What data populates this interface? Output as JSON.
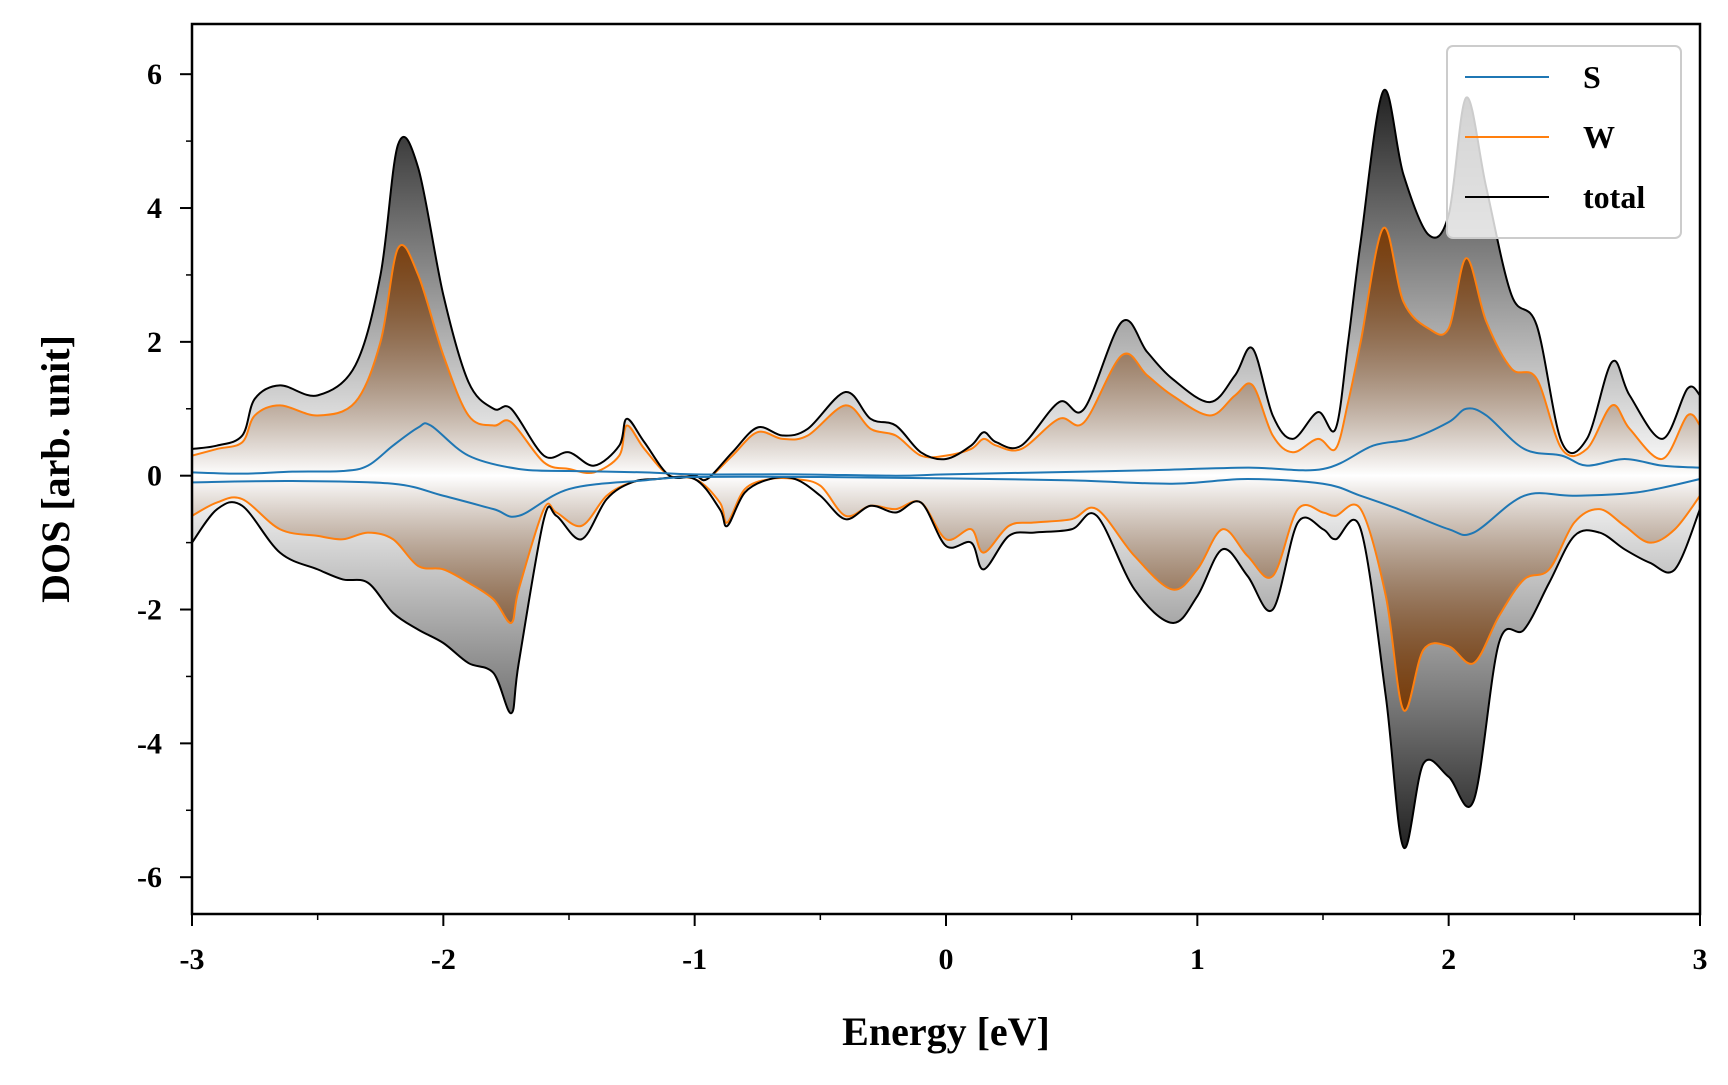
{
  "chart_data": {
    "type": "area",
    "xlabel": "Energy [eV]",
    "ylabel": "DOS [arb. unit]",
    "xlim": [
      -3,
      3
    ],
    "ylim": [
      -6.55,
      6.75
    ],
    "x_ticks": [
      -3,
      -2,
      -1,
      0,
      1,
      2,
      3
    ],
    "x_tick_labels": [
      "-3",
      "-2",
      "-1",
      "0",
      "1",
      "2",
      "3"
    ],
    "y_ticks": [
      6,
      4,
      2,
      0,
      -2,
      -4,
      -6
    ],
    "y_tick_labels": [
      "6",
      "4",
      "2",
      "0",
      "-2",
      "-4",
      "-6"
    ],
    "grid": false,
    "legend_position": "top-right",
    "fill_style": "vertical gradient, opaque at peaks fading to white at zero",
    "series": [
      {
        "name": "S",
        "color": "#1f77b4",
        "fill": false,
        "spin_up": {
          "x": [
            -3.0,
            -2.8,
            -2.6,
            -2.4,
            -2.3,
            -2.2,
            -2.1,
            -2.05,
            -1.9,
            -1.7,
            -1.5,
            -1.2,
            -1.0,
            -0.6,
            -0.2,
            0.0,
            0.4,
            0.8,
            1.2,
            1.5,
            1.7,
            1.85,
            2.0,
            2.07,
            2.15,
            2.3,
            2.45,
            2.55,
            2.7,
            2.85,
            3.0
          ],
          "y": [
            0.05,
            0.03,
            0.06,
            0.07,
            0.15,
            0.45,
            0.72,
            0.75,
            0.3,
            0.1,
            0.07,
            0.05,
            0.02,
            0.02,
            0.0,
            0.02,
            0.05,
            0.08,
            0.12,
            0.1,
            0.45,
            0.55,
            0.8,
            1.0,
            0.9,
            0.4,
            0.3,
            0.15,
            0.25,
            0.15,
            0.12
          ]
        },
        "spin_down": {
          "x": [
            -3.0,
            -2.6,
            -2.2,
            -2.0,
            -1.8,
            -1.7,
            -1.5,
            -1.2,
            -1.0,
            -0.5,
            0.0,
            0.5,
            0.9,
            1.2,
            1.5,
            1.65,
            1.8,
            2.0,
            2.1,
            2.3,
            2.5,
            2.75,
            3.0
          ],
          "y": [
            -0.1,
            -0.08,
            -0.12,
            -0.3,
            -0.5,
            -0.6,
            -0.2,
            -0.07,
            -0.02,
            -0.02,
            -0.04,
            -0.07,
            -0.12,
            -0.05,
            -0.12,
            -0.3,
            -0.5,
            -0.8,
            -0.85,
            -0.3,
            -0.3,
            -0.25,
            -0.05
          ]
        }
      },
      {
        "name": "W",
        "color": "#ff7f0e",
        "fill": true,
        "fill_color": "#7a3d0a",
        "spin_up": {
          "x": [
            -3.0,
            -2.9,
            -2.8,
            -2.75,
            -2.65,
            -2.5,
            -2.35,
            -2.25,
            -2.18,
            -2.1,
            -2.0,
            -1.9,
            -1.8,
            -1.73,
            -1.6,
            -1.5,
            -1.4,
            -1.3,
            -1.27,
            -1.2,
            -1.1,
            -1.0,
            -0.95,
            -0.85,
            -0.75,
            -0.65,
            -0.55,
            -0.4,
            -0.3,
            -0.2,
            -0.1,
            0.0,
            0.1,
            0.15,
            0.2,
            0.3,
            0.45,
            0.55,
            0.7,
            0.8,
            0.9,
            1.05,
            1.15,
            1.22,
            1.3,
            1.38,
            1.48,
            1.55,
            1.6,
            1.65,
            1.74,
            1.82,
            1.92,
            2.0,
            2.07,
            2.15,
            2.25,
            2.35,
            2.45,
            2.55,
            2.65,
            2.72,
            2.85,
            2.95,
            3.0
          ],
          "y": [
            0.3,
            0.4,
            0.5,
            0.9,
            1.05,
            0.9,
            1.1,
            2.0,
            3.4,
            3.0,
            1.8,
            0.9,
            0.75,
            0.8,
            0.2,
            0.1,
            0.05,
            0.3,
            0.75,
            0.4,
            0.0,
            0.0,
            -0.05,
            0.3,
            0.65,
            0.55,
            0.6,
            1.05,
            0.7,
            0.6,
            0.3,
            0.3,
            0.4,
            0.55,
            0.45,
            0.4,
            0.85,
            0.8,
            1.8,
            1.5,
            1.2,
            0.9,
            1.2,
            1.35,
            0.6,
            0.35,
            0.55,
            0.4,
            1.1,
            2.0,
            3.7,
            2.6,
            2.2,
            2.2,
            3.25,
            2.3,
            1.6,
            1.45,
            0.4,
            0.4,
            1.05,
            0.7,
            0.25,
            0.9,
            0.75
          ]
        },
        "spin_down": {
          "x": [
            -3.0,
            -2.9,
            -2.8,
            -2.65,
            -2.5,
            -2.4,
            -2.3,
            -2.2,
            -2.1,
            -2.0,
            -1.9,
            -1.8,
            -1.73,
            -1.7,
            -1.6,
            -1.55,
            -1.45,
            -1.35,
            -1.25,
            -1.15,
            -1.0,
            -0.9,
            -0.87,
            -0.8,
            -0.7,
            -0.6,
            -0.5,
            -0.4,
            -0.3,
            -0.2,
            -0.1,
            0.0,
            0.1,
            0.15,
            0.25,
            0.35,
            0.5,
            0.6,
            0.75,
            0.9,
            1.0,
            1.1,
            1.2,
            1.3,
            1.4,
            1.5,
            1.55,
            1.65,
            1.75,
            1.82,
            1.9,
            2.0,
            2.1,
            2.2,
            2.3,
            2.4,
            2.5,
            2.6,
            2.7,
            2.8,
            2.9,
            3.0
          ],
          "y": [
            -0.6,
            -0.4,
            -0.35,
            -0.8,
            -0.9,
            -0.95,
            -0.85,
            -0.95,
            -1.35,
            -1.4,
            -1.6,
            -1.85,
            -2.2,
            -1.7,
            -0.5,
            -0.55,
            -0.75,
            -0.3,
            -0.1,
            -0.05,
            -0.05,
            -0.4,
            -0.7,
            -0.2,
            -0.05,
            -0.05,
            -0.15,
            -0.6,
            -0.45,
            -0.5,
            -0.4,
            -0.95,
            -0.8,
            -1.15,
            -0.75,
            -0.7,
            -0.65,
            -0.5,
            -1.2,
            -1.7,
            -1.4,
            -0.8,
            -1.2,
            -1.5,
            -0.5,
            -0.55,
            -0.6,
            -0.5,
            -1.8,
            -3.5,
            -2.6,
            -2.55,
            -2.8,
            -2.1,
            -1.55,
            -1.4,
            -0.7,
            -0.5,
            -0.75,
            -1.0,
            -0.8,
            -0.3
          ]
        }
      },
      {
        "name": "total",
        "color": "#000000",
        "fill": true,
        "fill_color": "#222222",
        "spin_up": {
          "x": [
            -3.0,
            -2.9,
            -2.8,
            -2.75,
            -2.65,
            -2.5,
            -2.35,
            -2.25,
            -2.18,
            -2.1,
            -2.0,
            -1.9,
            -1.8,
            -1.73,
            -1.6,
            -1.5,
            -1.4,
            -1.3,
            -1.27,
            -1.2,
            -1.1,
            -1.0,
            -0.95,
            -0.85,
            -0.75,
            -0.65,
            -0.55,
            -0.4,
            -0.3,
            -0.2,
            -0.1,
            0.0,
            0.1,
            0.15,
            0.2,
            0.3,
            0.45,
            0.55,
            0.7,
            0.8,
            0.9,
            1.05,
            1.15,
            1.22,
            1.3,
            1.38,
            1.48,
            1.55,
            1.6,
            1.65,
            1.74,
            1.82,
            1.92,
            2.0,
            2.07,
            2.15,
            2.25,
            2.35,
            2.45,
            2.55,
            2.65,
            2.72,
            2.85,
            2.95,
            3.0
          ],
          "y": [
            0.4,
            0.45,
            0.6,
            1.15,
            1.35,
            1.2,
            1.65,
            3.0,
            4.95,
            4.6,
            2.7,
            1.4,
            1.0,
            1.0,
            0.3,
            0.35,
            0.15,
            0.45,
            0.85,
            0.5,
            0.0,
            0.0,
            -0.05,
            0.35,
            0.72,
            0.6,
            0.7,
            1.25,
            0.85,
            0.75,
            0.35,
            0.25,
            0.45,
            0.65,
            0.5,
            0.45,
            1.1,
            1.0,
            2.3,
            1.85,
            1.45,
            1.1,
            1.5,
            1.9,
            0.9,
            0.55,
            0.95,
            0.7,
            2.0,
            3.5,
            5.75,
            4.5,
            3.6,
            3.9,
            5.65,
            4.3,
            2.7,
            2.25,
            0.5,
            0.55,
            1.7,
            1.2,
            0.55,
            1.3,
            1.2
          ]
        },
        "spin_down": {
          "x": [
            -3.0,
            -2.9,
            -2.8,
            -2.65,
            -2.5,
            -2.4,
            -2.3,
            -2.2,
            -2.1,
            -2.0,
            -1.9,
            -1.8,
            -1.73,
            -1.7,
            -1.6,
            -1.55,
            -1.45,
            -1.35,
            -1.25,
            -1.15,
            -1.0,
            -0.9,
            -0.87,
            -0.8,
            -0.7,
            -0.6,
            -0.5,
            -0.4,
            -0.3,
            -0.2,
            -0.1,
            0.0,
            0.1,
            0.15,
            0.25,
            0.35,
            0.5,
            0.6,
            0.75,
            0.9,
            1.0,
            1.1,
            1.2,
            1.3,
            1.4,
            1.5,
            1.55,
            1.65,
            1.75,
            1.82,
            1.9,
            2.0,
            2.1,
            2.2,
            2.3,
            2.4,
            2.5,
            2.6,
            2.7,
            2.8,
            2.9,
            3.0
          ],
          "y": [
            -1.0,
            -0.5,
            -0.45,
            -1.15,
            -1.4,
            -1.55,
            -1.6,
            -2.05,
            -2.3,
            -2.5,
            -2.8,
            -2.95,
            -3.55,
            -2.8,
            -0.65,
            -0.6,
            -0.95,
            -0.35,
            -0.1,
            -0.05,
            -0.05,
            -0.5,
            -0.75,
            -0.25,
            -0.05,
            -0.05,
            -0.3,
            -0.65,
            -0.45,
            -0.55,
            -0.4,
            -1.05,
            -1.0,
            -1.4,
            -0.9,
            -0.85,
            -0.8,
            -0.6,
            -1.7,
            -2.2,
            -1.8,
            -1.1,
            -1.5,
            -2.0,
            -0.7,
            -0.8,
            -0.95,
            -0.8,
            -3.3,
            -5.55,
            -4.3,
            -4.5,
            -4.85,
            -2.5,
            -2.3,
            -1.6,
            -0.9,
            -0.85,
            -1.1,
            -1.3,
            -1.4,
            -0.5
          ]
        }
      }
    ]
  }
}
